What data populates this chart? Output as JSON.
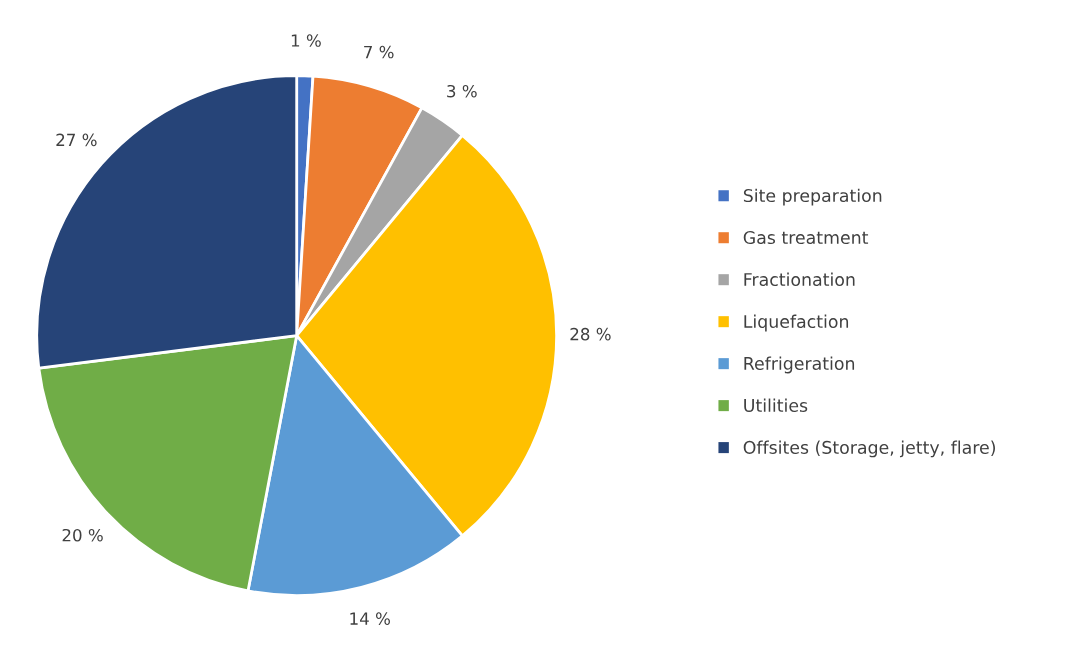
{
  "chart_data": {
    "type": "pie",
    "categories": [
      "Site preparation",
      "Gas treatment",
      "Fractionation",
      "Liquefaction",
      "Refrigeration",
      "Utilities",
      "Offsites (Storage, jetty, flare)"
    ],
    "values": [
      1,
      7,
      3,
      28,
      14,
      20,
      27
    ],
    "colors": [
      "#4472c4",
      "#ed7d31",
      "#a5a5a5",
      "#ffc000",
      "#5b9bd5",
      "#70ad47",
      "#264478"
    ],
    "value_labels": [
      "1 %",
      "7 %",
      "3 %",
      "28 %",
      "14 %",
      "20 %",
      "27 %"
    ],
    "legend": "right"
  }
}
